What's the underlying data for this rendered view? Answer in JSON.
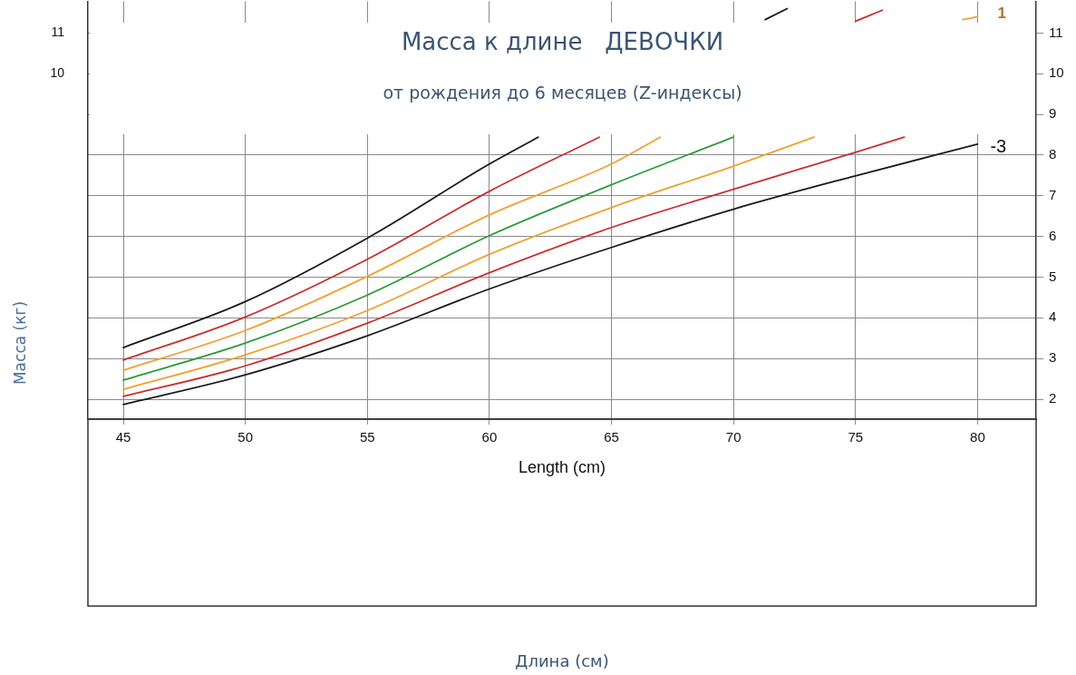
{
  "chart_data": {
    "type": "line",
    "title": "Масса к длине   ДЕВОЧКИ",
    "subtitle": "от рождения до 6 месяцев (Z-индексы)",
    "xlabel": "Length (cm)",
    "ylabel": "Масса (кг)",
    "xlim": [
      43.55,
      82.4
    ],
    "xticks": [
      45,
      50,
      55,
      60,
      65,
      70,
      75,
      80
    ],
    "ylim": [
      1.51,
      11.78
    ],
    "yticks": [
      10,
      11
    ],
    "y2lim": [
      1.51,
      11.78
    ],
    "y2ticks": [
      2,
      3,
      4,
      5,
      6,
      7,
      8,
      9,
      10,
      11
    ],
    "grid": true,
    "legend": false,
    "marker": "none",
    "line_style": "solid",
    "series": [
      {
        "color": "#1a1a1a",
        "x": [
          45,
          50,
          55,
          60,
          65,
          70,
          75,
          80
        ],
        "values": [
          1.87,
          2.6,
          3.56,
          4.71,
          5.73,
          6.67,
          7.49,
          8.27
        ]
      },
      {
        "color": "#c8302e",
        "x": [
          45,
          50,
          55,
          60,
          65,
          70,
          75,
          77
        ],
        "values": [
          2.07,
          2.82,
          3.87,
          5.11,
          6.22,
          7.16,
          8.07,
          8.44
        ]
      },
      {
        "color": "#f0a030",
        "x": [
          45,
          50,
          55,
          60,
          65,
          70,
          73.3
        ],
        "values": [
          2.24,
          3.09,
          4.18,
          5.56,
          6.71,
          7.73,
          8.44
        ]
      },
      {
        "color": "#2e9a3a",
        "x": [
          45,
          50,
          55,
          60,
          65,
          70
        ],
        "values": [
          2.47,
          3.38,
          4.56,
          6.02,
          7.27,
          8.44
        ]
      },
      {
        "color": "#f0a030",
        "x": [
          45,
          50,
          55,
          60,
          65,
          67
        ],
        "values": [
          2.71,
          3.69,
          5.02,
          6.53,
          7.78,
          8.44
        ]
      },
      {
        "color": "#c8302e",
        "x": [
          45,
          50,
          55,
          60,
          64.5
        ],
        "values": [
          2.96,
          4.02,
          5.44,
          7.11,
          8.44
        ]
      },
      {
        "color": "#1a1a1a",
        "x": [
          45,
          50,
          55,
          60,
          62
        ],
        "values": [
          3.27,
          4.4,
          5.96,
          7.78,
          8.44
        ]
      },
      {
        "color": "#1a1a1a",
        "x": [
          71.3,
          72.2
        ],
        "values": [
          11.33,
          11.6
        ]
      },
      {
        "color": "#c8302e",
        "x": [
          75,
          76.1
        ],
        "values": [
          11.29,
          11.56
        ]
      },
      {
        "name": "1",
        "color": "#f0a030",
        "x": [
          79.4,
          80
        ],
        "values": [
          11.33,
          11.4
        ]
      }
    ],
    "annotations": [
      {
        "text": "-3",
        "x": 80,
        "y": 8.27
      },
      "Длина (см)"
    ]
  }
}
